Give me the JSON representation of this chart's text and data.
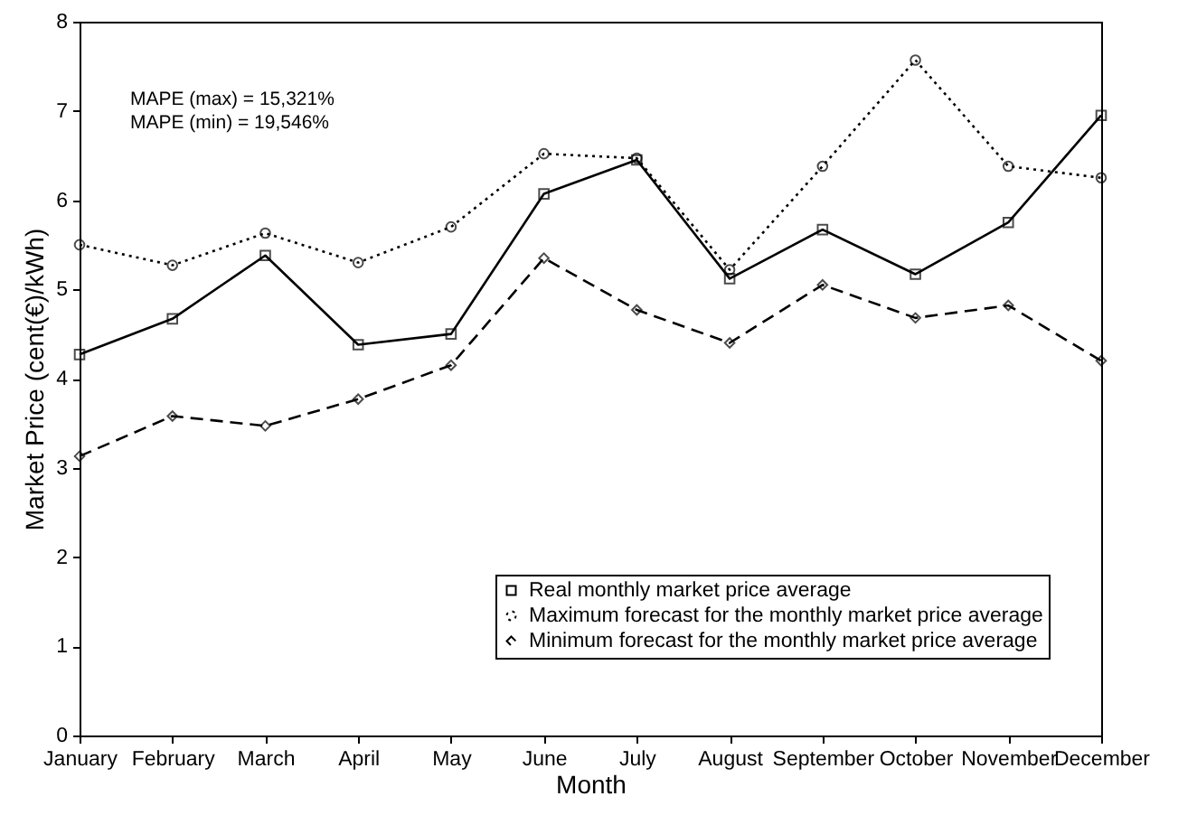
{
  "chart_data": {
    "type": "line",
    "xlabel": "Month",
    "ylabel": "Market Price (cent(€)/kWh)",
    "categories": [
      "January",
      "February",
      "March",
      "April",
      "May",
      "June",
      "July",
      "August",
      "September",
      "October",
      "November",
      "December"
    ],
    "series": [
      {
        "name": "Real monthly market price average",
        "color": "#000000",
        "marker": "square",
        "line_style": "solid",
        "values": [
          4.27,
          4.67,
          5.38,
          4.38,
          4.5,
          6.07,
          6.45,
          5.12,
          5.67,
          5.17,
          5.75,
          6.95
        ]
      },
      {
        "name": "Maximum forecast for the monthly market price average",
        "color": "#000000",
        "marker": "circle",
        "line_style": "dotted",
        "values": [
          5.5,
          5.27,
          5.63,
          5.3,
          5.7,
          6.52,
          6.47,
          5.22,
          6.38,
          7.57,
          6.38,
          6.25
        ]
      },
      {
        "name": "Minimum forecast for the monthly market price average",
        "color": "#000000",
        "marker": "diamond",
        "line_style": "dashed",
        "values": [
          3.13,
          3.58,
          3.47,
          3.77,
          4.15,
          5.35,
          4.77,
          4.4,
          5.05,
          4.68,
          4.82,
          4.2
        ]
      }
    ],
    "ylim": [
      0,
      8
    ],
    "yticks": [
      0,
      1,
      2,
      3,
      4,
      5,
      6,
      7,
      8
    ],
    "grid": false,
    "legend": "bottom right",
    "annotations": [
      "MAPE (max) = 15,321%",
      "MAPE (min) = 19,546%"
    ]
  }
}
